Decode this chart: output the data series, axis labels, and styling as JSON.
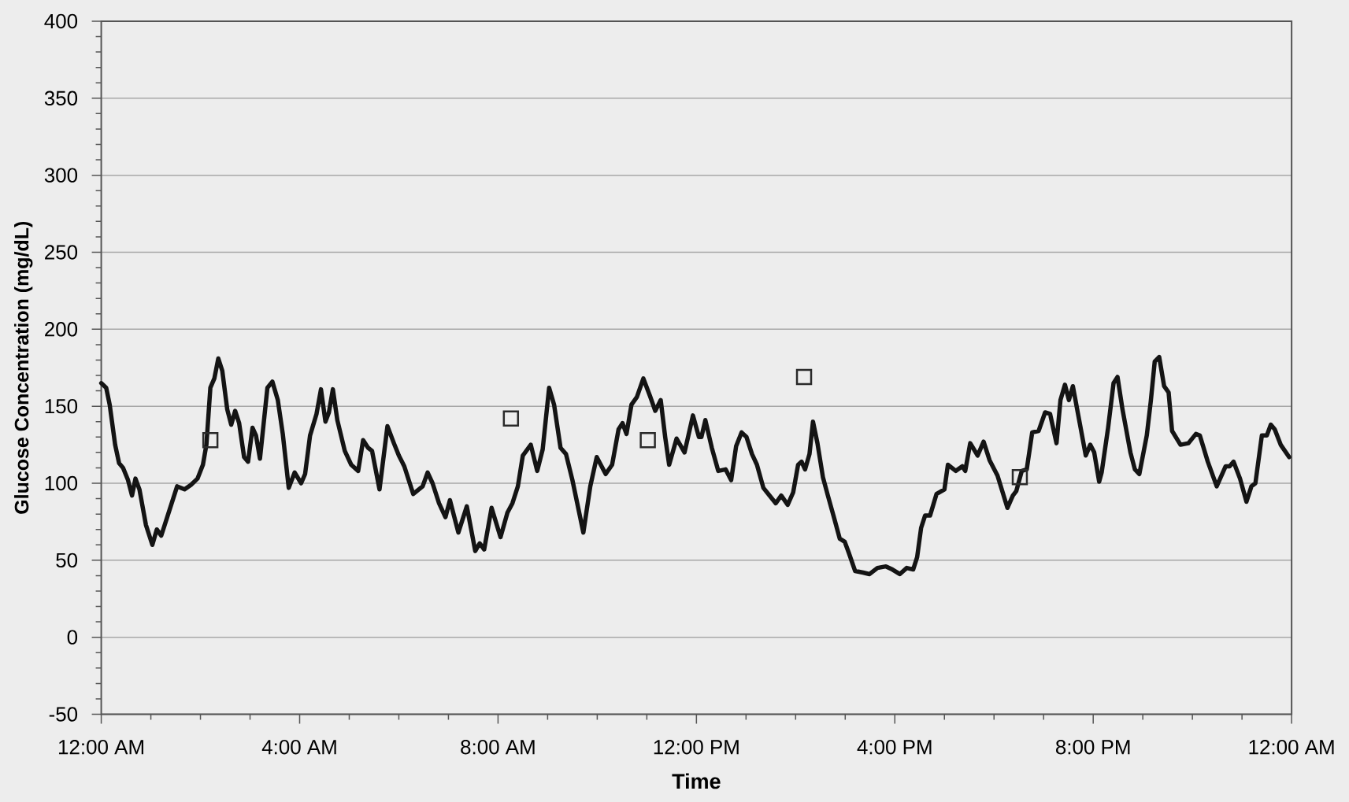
{
  "chart_data": {
    "type": "line",
    "xlabel": "Time",
    "ylabel": "Glucose Concentration (mg/dL)",
    "xlim": [
      0,
      24
    ],
    "ylim": [
      -50,
      400
    ],
    "xticks": [
      {
        "value": 0,
        "label": "12:00 AM"
      },
      {
        "value": 4,
        "label": "4:00 AM"
      },
      {
        "value": 8,
        "label": "8:00 AM"
      },
      {
        "value": 12,
        "label": "12:00 PM"
      },
      {
        "value": 16,
        "label": "4:00 PM"
      },
      {
        "value": 20,
        "label": "8:00 PM"
      },
      {
        "value": 24,
        "label": "12:00 AM"
      }
    ],
    "yticks": [
      -50,
      0,
      50,
      100,
      150,
      200,
      250,
      300,
      350,
      400
    ],
    "grid": "y",
    "series": [
      {
        "color": "#141414",
        "x": [
          0,
          0.1,
          0.17,
          0.28,
          0.36,
          0.44,
          0.54,
          0.62,
          0.69,
          0.77,
          0.9,
          1.03,
          1.12,
          1.21,
          1.35,
          1.53,
          1.68,
          1.81,
          1.94,
          2.05,
          2.12,
          2.2,
          2.28,
          2.36,
          2.44,
          2.54,
          2.62,
          2.7,
          2.78,
          2.88,
          2.96,
          3.05,
          3.12,
          3.2,
          3.35,
          3.45,
          3.56,
          3.66,
          3.78,
          3.9,
          4.03,
          4.11,
          4.21,
          4.34,
          4.43,
          4.52,
          4.59,
          4.67,
          4.76,
          4.91,
          5.04,
          5.18,
          5.28,
          5.38,
          5.46,
          5.61,
          5.77,
          5.9,
          6.0,
          6.11,
          6.29,
          6.48,
          6.58,
          6.68,
          6.81,
          6.94,
          7.03,
          7.2,
          7.37,
          7.54,
          7.63,
          7.72,
          7.87,
          8.05,
          8.19,
          8.29,
          8.4,
          8.5,
          8.66,
          8.79,
          8.9,
          9.03,
          9.13,
          9.26,
          9.37,
          9.5,
          9.72,
          9.86,
          9.99,
          10.17,
          10.3,
          10.43,
          10.51,
          10.59,
          10.69,
          10.8,
          10.93,
          11.06,
          11.17,
          11.28,
          11.37,
          11.45,
          11.6,
          11.76,
          11.93,
          12.05,
          12.1,
          12.18,
          12.31,
          12.44,
          12.59,
          12.7,
          12.8,
          12.91,
          13.01,
          13.12,
          13.22,
          13.35,
          13.45,
          13.6,
          13.71,
          13.84,
          13.95,
          14.05,
          14.12,
          14.19,
          14.28,
          14.35,
          14.44,
          14.55,
          14.65,
          14.78,
          14.89,
          14.99,
          15.07,
          15.2,
          15.36,
          15.49,
          15.65,
          15.82,
          15.95,
          16.1,
          16.24,
          16.37,
          16.45,
          16.53,
          16.61,
          16.71,
          16.84,
          17.0,
          17.07,
          17.23,
          17.36,
          17.42,
          17.52,
          17.67,
          17.79,
          17.91,
          18.07,
          18.27,
          18.38,
          18.45,
          18.56,
          18.66,
          18.77,
          18.9,
          19.03,
          19.13,
          19.26,
          19.34,
          19.43,
          19.51,
          19.59,
          19.7,
          19.85,
          19.94,
          20.02,
          20.12,
          20.17,
          20.3,
          20.41,
          20.49,
          20.59,
          20.75,
          20.84,
          20.93,
          21.08,
          21.16,
          21.24,
          21.33,
          21.43,
          21.52,
          21.59,
          21.76,
          21.92,
          22.07,
          22.15,
          22.31,
          22.49,
          22.67,
          22.75,
          22.83,
          22.96,
          23.09,
          23.19,
          23.27,
          23.4,
          23.5,
          23.58,
          23.66,
          23.78,
          23.95
        ],
        "values": [
          165,
          162,
          151,
          125,
          113,
          110,
          102,
          92,
          103,
          96,
          73,
          60,
          70,
          66,
          80,
          98,
          96,
          99,
          103,
          112,
          125,
          162,
          168,
          181,
          173,
          148,
          138,
          147,
          139,
          117,
          114,
          136,
          131,
          116,
          162,
          166,
          154,
          132,
          97,
          107,
          100,
          106,
          131,
          145,
          161,
          140,
          146,
          161,
          141,
          121,
          112,
          108,
          128,
          123,
          121,
          96,
          137,
          126,
          118,
          111,
          93,
          98,
          107,
          100,
          87,
          78,
          89,
          68,
          85,
          56,
          61,
          57,
          84,
          65,
          81,
          87,
          98,
          118,
          125,
          108,
          122,
          162,
          151,
          123,
          119,
          102,
          68,
          98,
          117,
          106,
          112,
          135,
          139,
          132,
          151,
          156,
          168,
          157,
          147,
          154,
          130,
          112,
          129,
          120,
          144,
          130,
          130,
          141,
          123,
          108,
          109,
          102,
          124,
          133,
          130,
          119,
          112,
          97,
          93,
          87,
          92,
          86,
          94,
          112,
          114,
          109,
          119,
          140,
          126,
          104,
          92,
          77,
          64,
          62,
          55,
          43,
          42,
          41,
          45,
          46,
          44,
          41,
          45,
          44,
          52,
          71,
          79,
          79,
          93,
          96,
          112,
          108,
          111,
          108,
          126,
          118,
          127,
          115,
          105,
          84,
          92,
          95,
          108,
          109,
          133,
          134,
          146,
          145,
          126,
          154,
          164,
          154,
          163,
          144,
          118,
          125,
          120,
          101,
          107,
          136,
          165,
          169,
          148,
          120,
          109,
          106,
          131,
          153,
          179,
          182,
          163,
          159,
          134,
          125,
          126,
          132,
          131,
          114,
          98,
          111,
          111,
          114,
          103,
          88,
          98,
          100,
          131,
          131,
          138,
          135,
          125,
          117
        ]
      },
      {
        "type": "scatter",
        "color": "#2a2a2a",
        "marker": "square",
        "x": [
          2.2,
          8.26,
          11.02,
          14.17,
          18.52
        ],
        "values": [
          128,
          142,
          128,
          169,
          104
        ]
      }
    ]
  }
}
